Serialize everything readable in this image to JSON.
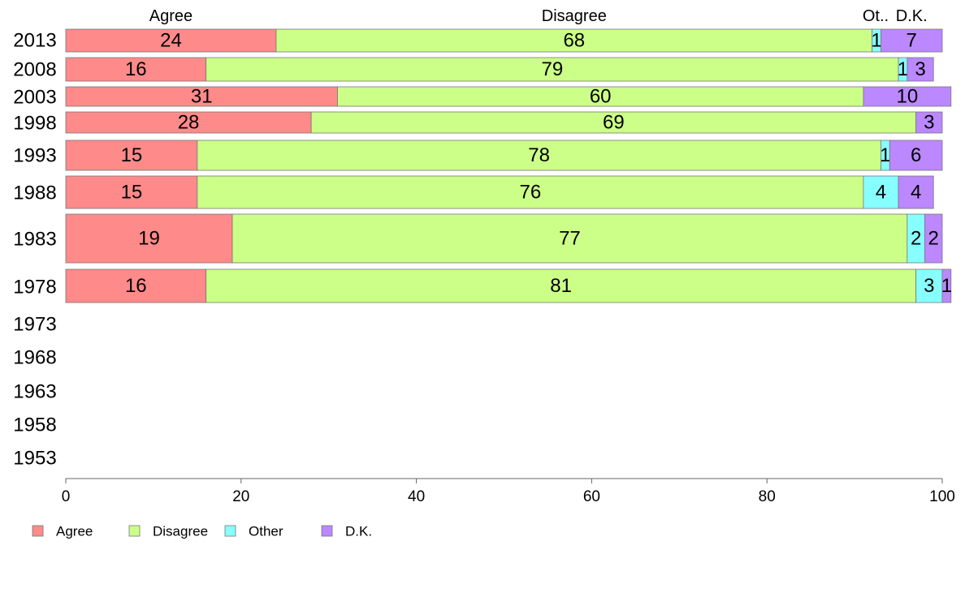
{
  "chart_data": {
    "type": "bar",
    "orientation": "horizontal",
    "stacked": true,
    "categories": [
      "2013",
      "2008",
      "2003",
      "1998",
      "1993",
      "1988",
      "1983",
      "1978",
      "1973",
      "1968",
      "1963",
      "1958",
      "1953"
    ],
    "series": [
      {
        "name": "Agree",
        "color": "#ff8a8a",
        "values": [
          24,
          16,
          31,
          28,
          15,
          15,
          19,
          16,
          null,
          null,
          null,
          null,
          null
        ]
      },
      {
        "name": "Disagree",
        "color": "#ccff88",
        "values": [
          68,
          79,
          60,
          69,
          78,
          76,
          77,
          81,
          null,
          null,
          null,
          null,
          null
        ]
      },
      {
        "name": "Other",
        "color": "#88ffff",
        "values": [
          1,
          1,
          0,
          0,
          1,
          4,
          2,
          3,
          null,
          null,
          null,
          null,
          null
        ]
      },
      {
        "name": "D.K.",
        "color": "#bb88ff",
        "values": [
          7,
          3,
          10,
          3,
          6,
          4,
          2,
          1,
          null,
          null,
          null,
          null,
          null
        ]
      }
    ],
    "data_labels": [
      [
        "24",
        "68",
        "1",
        "7"
      ],
      [
        "16",
        "79",
        "1",
        "3"
      ],
      [
        "31",
        "60",
        "",
        "10"
      ],
      [
        "28",
        "69",
        "",
        "3"
      ],
      [
        "15",
        "78",
        "1",
        "6"
      ],
      [
        "15",
        "76",
        "4",
        "4"
      ],
      [
        "19",
        "77",
        "2",
        "2"
      ],
      [
        "16",
        "81",
        "3",
        "1"
      ],
      [],
      [],
      [],
      [],
      []
    ],
    "top_labels": [
      {
        "text": "Agree",
        "at": 12
      },
      {
        "text": "Disagree",
        "at": 58
      },
      {
        "text": "Ot..",
        "at": 92.4
      },
      {
        "text": "D.K.",
        "at": 96.5
      }
    ],
    "xlim": [
      0,
      100
    ],
    "xticks": [
      0,
      20,
      40,
      60,
      80,
      100
    ],
    "legend": {
      "placement": "bottom-left",
      "items": [
        "Agree",
        "Disagree",
        "Other",
        "D.K."
      ]
    }
  }
}
